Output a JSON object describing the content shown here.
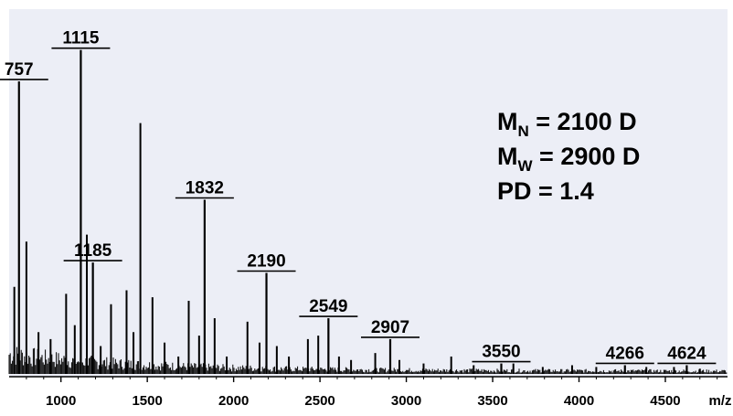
{
  "chart_data": {
    "type": "line",
    "title": "",
    "xlabel": "m/z",
    "ylabel": "",
    "xlim": [
      700,
      4860
    ],
    "ylim": [
      0,
      100
    ],
    "grid": false,
    "background": "#eceef6",
    "line_color": "#000000",
    "x_ticks": [
      1000,
      1500,
      2000,
      2500,
      3000,
      3500,
      4000,
      4500
    ],
    "x_tick_labels": [
      "1000",
      "1500",
      "2000",
      "2500",
      "3000",
      "3500",
      "4000",
      "4500"
    ],
    "annotations": {
      "lines": [
        {
          "main": "M",
          "sub": "N",
          "rest": " = 2100 D"
        },
        {
          "main": "M",
          "sub": "W",
          "rest": " = 2900 D"
        },
        {
          "main": "PD = 1.4",
          "sub": "",
          "rest": ""
        }
      ]
    },
    "labeled_peaks": [
      {
        "label": "757",
        "x": 757,
        "y": 84
      },
      {
        "label": "1115",
        "x": 1115,
        "y": 93
      },
      {
        "label": "1185",
        "x": 1185,
        "y": 32
      },
      {
        "label": "1832",
        "x": 1832,
        "y": 50
      },
      {
        "label": "2190",
        "x": 2190,
        "y": 29
      },
      {
        "label": "2549",
        "x": 2549,
        "y": 16
      },
      {
        "label": "2907",
        "x": 2907,
        "y": 10
      },
      {
        "label": "3550",
        "x": 3550,
        "y": 3
      },
      {
        "label": "4266",
        "x": 4266,
        "y": 2.5
      },
      {
        "label": "4624",
        "x": 4624,
        "y": 2.5
      }
    ],
    "other_peaks": [
      {
        "x": 730,
        "y": 25
      },
      {
        "x": 800,
        "y": 38
      },
      {
        "x": 870,
        "y": 12
      },
      {
        "x": 940,
        "y": 10
      },
      {
        "x": 1030,
        "y": 23
      },
      {
        "x": 1080,
        "y": 14
      },
      {
        "x": 1150,
        "y": 40
      },
      {
        "x": 1230,
        "y": 8
      },
      {
        "x": 1290,
        "y": 20
      },
      {
        "x": 1380,
        "y": 24
      },
      {
        "x": 1420,
        "y": 12
      },
      {
        "x": 1460,
        "y": 72
      },
      {
        "x": 1530,
        "y": 22
      },
      {
        "x": 1600,
        "y": 9
      },
      {
        "x": 1680,
        "y": 5
      },
      {
        "x": 1740,
        "y": 21
      },
      {
        "x": 1800,
        "y": 11
      },
      {
        "x": 1890,
        "y": 16
      },
      {
        "x": 1960,
        "y": 5
      },
      {
        "x": 2080,
        "y": 15
      },
      {
        "x": 2150,
        "y": 9
      },
      {
        "x": 2250,
        "y": 8
      },
      {
        "x": 2320,
        "y": 5
      },
      {
        "x": 2430,
        "y": 10
      },
      {
        "x": 2490,
        "y": 11
      },
      {
        "x": 2610,
        "y": 5
      },
      {
        "x": 2680,
        "y": 4
      },
      {
        "x": 2820,
        "y": 6
      },
      {
        "x": 2960,
        "y": 4
      },
      {
        "x": 3100,
        "y": 3
      },
      {
        "x": 3260,
        "y": 5
      },
      {
        "x": 3390,
        "y": 2.5
      },
      {
        "x": 3620,
        "y": 3
      },
      {
        "x": 3790,
        "y": 2
      },
      {
        "x": 3960,
        "y": 2.5
      },
      {
        "x": 4100,
        "y": 2
      },
      {
        "x": 4390,
        "y": 2
      },
      {
        "x": 4550,
        "y": 2
      },
      {
        "x": 4700,
        "y": 1.5
      }
    ]
  }
}
